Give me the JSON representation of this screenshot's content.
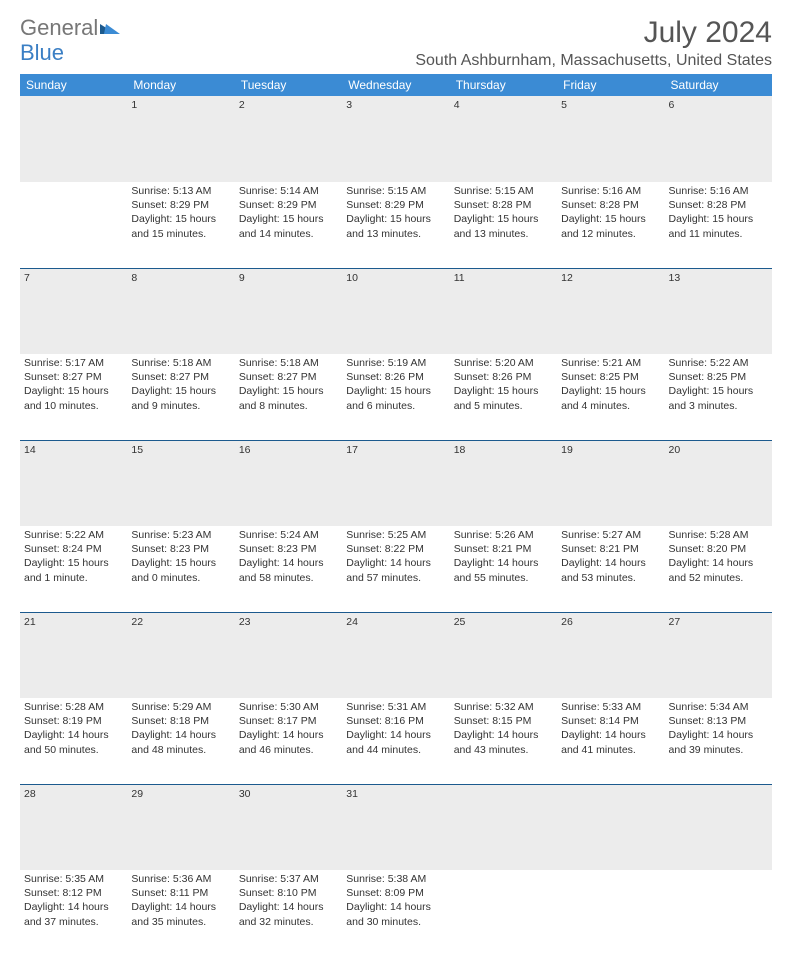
{
  "logo": {
    "text1": "General",
    "text2": "Blue"
  },
  "title": "July 2024",
  "location": "South Ashburnham, Massachusetts, United States",
  "colors": {
    "header_bg": "#3b8bd4",
    "header_text": "#ffffff",
    "daynum_bg": "#ececec",
    "row_divider": "#1c5a8e",
    "text": "#333333",
    "title_color": "#555555",
    "logo_blue": "#3b7fc4"
  },
  "weekdays": [
    "Sunday",
    "Monday",
    "Tuesday",
    "Wednesday",
    "Thursday",
    "Friday",
    "Saturday"
  ],
  "weeks": [
    {
      "nums": [
        "",
        "1",
        "2",
        "3",
        "4",
        "5",
        "6"
      ],
      "cells": [
        {
          "d": "",
          "sr": "",
          "ss": "",
          "dl": ""
        },
        {
          "d": "1",
          "sr": "Sunrise: 5:13 AM",
          "ss": "Sunset: 8:29 PM",
          "dl": "Daylight: 15 hours and 15 minutes."
        },
        {
          "d": "2",
          "sr": "Sunrise: 5:14 AM",
          "ss": "Sunset: 8:29 PM",
          "dl": "Daylight: 15 hours and 14 minutes."
        },
        {
          "d": "3",
          "sr": "Sunrise: 5:15 AM",
          "ss": "Sunset: 8:29 PM",
          "dl": "Daylight: 15 hours and 13 minutes."
        },
        {
          "d": "4",
          "sr": "Sunrise: 5:15 AM",
          "ss": "Sunset: 8:28 PM",
          "dl": "Daylight: 15 hours and 13 minutes."
        },
        {
          "d": "5",
          "sr": "Sunrise: 5:16 AM",
          "ss": "Sunset: 8:28 PM",
          "dl": "Daylight: 15 hours and 12 minutes."
        },
        {
          "d": "6",
          "sr": "Sunrise: 5:16 AM",
          "ss": "Sunset: 8:28 PM",
          "dl": "Daylight: 15 hours and 11 minutes."
        }
      ]
    },
    {
      "nums": [
        "7",
        "8",
        "9",
        "10",
        "11",
        "12",
        "13"
      ],
      "cells": [
        {
          "d": "7",
          "sr": "Sunrise: 5:17 AM",
          "ss": "Sunset: 8:27 PM",
          "dl": "Daylight: 15 hours and 10 minutes."
        },
        {
          "d": "8",
          "sr": "Sunrise: 5:18 AM",
          "ss": "Sunset: 8:27 PM",
          "dl": "Daylight: 15 hours and 9 minutes."
        },
        {
          "d": "9",
          "sr": "Sunrise: 5:18 AM",
          "ss": "Sunset: 8:27 PM",
          "dl": "Daylight: 15 hours and 8 minutes."
        },
        {
          "d": "10",
          "sr": "Sunrise: 5:19 AM",
          "ss": "Sunset: 8:26 PM",
          "dl": "Daylight: 15 hours and 6 minutes."
        },
        {
          "d": "11",
          "sr": "Sunrise: 5:20 AM",
          "ss": "Sunset: 8:26 PM",
          "dl": "Daylight: 15 hours and 5 minutes."
        },
        {
          "d": "12",
          "sr": "Sunrise: 5:21 AM",
          "ss": "Sunset: 8:25 PM",
          "dl": "Daylight: 15 hours and 4 minutes."
        },
        {
          "d": "13",
          "sr": "Sunrise: 5:22 AM",
          "ss": "Sunset: 8:25 PM",
          "dl": "Daylight: 15 hours and 3 minutes."
        }
      ]
    },
    {
      "nums": [
        "14",
        "15",
        "16",
        "17",
        "18",
        "19",
        "20"
      ],
      "cells": [
        {
          "d": "14",
          "sr": "Sunrise: 5:22 AM",
          "ss": "Sunset: 8:24 PM",
          "dl": "Daylight: 15 hours and 1 minute."
        },
        {
          "d": "15",
          "sr": "Sunrise: 5:23 AM",
          "ss": "Sunset: 8:23 PM",
          "dl": "Daylight: 15 hours and 0 minutes."
        },
        {
          "d": "16",
          "sr": "Sunrise: 5:24 AM",
          "ss": "Sunset: 8:23 PM",
          "dl": "Daylight: 14 hours and 58 minutes."
        },
        {
          "d": "17",
          "sr": "Sunrise: 5:25 AM",
          "ss": "Sunset: 8:22 PM",
          "dl": "Daylight: 14 hours and 57 minutes."
        },
        {
          "d": "18",
          "sr": "Sunrise: 5:26 AM",
          "ss": "Sunset: 8:21 PM",
          "dl": "Daylight: 14 hours and 55 minutes."
        },
        {
          "d": "19",
          "sr": "Sunrise: 5:27 AM",
          "ss": "Sunset: 8:21 PM",
          "dl": "Daylight: 14 hours and 53 minutes."
        },
        {
          "d": "20",
          "sr": "Sunrise: 5:28 AM",
          "ss": "Sunset: 8:20 PM",
          "dl": "Daylight: 14 hours and 52 minutes."
        }
      ]
    },
    {
      "nums": [
        "21",
        "22",
        "23",
        "24",
        "25",
        "26",
        "27"
      ],
      "cells": [
        {
          "d": "21",
          "sr": "Sunrise: 5:28 AM",
          "ss": "Sunset: 8:19 PM",
          "dl": "Daylight: 14 hours and 50 minutes."
        },
        {
          "d": "22",
          "sr": "Sunrise: 5:29 AM",
          "ss": "Sunset: 8:18 PM",
          "dl": "Daylight: 14 hours and 48 minutes."
        },
        {
          "d": "23",
          "sr": "Sunrise: 5:30 AM",
          "ss": "Sunset: 8:17 PM",
          "dl": "Daylight: 14 hours and 46 minutes."
        },
        {
          "d": "24",
          "sr": "Sunrise: 5:31 AM",
          "ss": "Sunset: 8:16 PM",
          "dl": "Daylight: 14 hours and 44 minutes."
        },
        {
          "d": "25",
          "sr": "Sunrise: 5:32 AM",
          "ss": "Sunset: 8:15 PM",
          "dl": "Daylight: 14 hours and 43 minutes."
        },
        {
          "d": "26",
          "sr": "Sunrise: 5:33 AM",
          "ss": "Sunset: 8:14 PM",
          "dl": "Daylight: 14 hours and 41 minutes."
        },
        {
          "d": "27",
          "sr": "Sunrise: 5:34 AM",
          "ss": "Sunset: 8:13 PM",
          "dl": "Daylight: 14 hours and 39 minutes."
        }
      ]
    },
    {
      "nums": [
        "28",
        "29",
        "30",
        "31",
        "",
        "",
        ""
      ],
      "cells": [
        {
          "d": "28",
          "sr": "Sunrise: 5:35 AM",
          "ss": "Sunset: 8:12 PM",
          "dl": "Daylight: 14 hours and 37 minutes."
        },
        {
          "d": "29",
          "sr": "Sunrise: 5:36 AM",
          "ss": "Sunset: 8:11 PM",
          "dl": "Daylight: 14 hours and 35 minutes."
        },
        {
          "d": "30",
          "sr": "Sunrise: 5:37 AM",
          "ss": "Sunset: 8:10 PM",
          "dl": "Daylight: 14 hours and 32 minutes."
        },
        {
          "d": "31",
          "sr": "Sunrise: 5:38 AM",
          "ss": "Sunset: 8:09 PM",
          "dl": "Daylight: 14 hours and 30 minutes."
        },
        {
          "d": "",
          "sr": "",
          "ss": "",
          "dl": ""
        },
        {
          "d": "",
          "sr": "",
          "ss": "",
          "dl": ""
        },
        {
          "d": "",
          "sr": "",
          "ss": "",
          "dl": ""
        }
      ]
    }
  ]
}
